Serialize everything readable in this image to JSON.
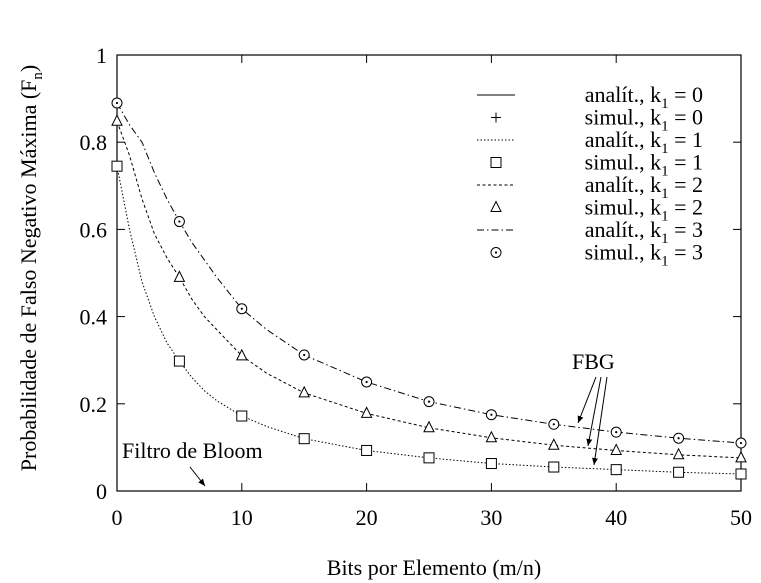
{
  "chart_data": {
    "type": "line",
    "xlabel": "Bits por Elemento (m/n)",
    "ylabel": "Probabilidade de Falso Negativo Máxima (F",
    "ylabel_sub": "n",
    "ylabel_tail": ")",
    "xlim": [
      0,
      50
    ],
    "ylim": [
      0,
      1
    ],
    "x_ticks": [
      "0",
      "10",
      "20",
      "30",
      "40",
      "50"
    ],
    "y_ticks": [
      "0",
      "0.2",
      "0.4",
      "0.6",
      "0.8",
      "1"
    ],
    "grid": false,
    "legend_position": "top-right",
    "annotations": {
      "bloom": "Filtro de Bloom",
      "fbg": "FBG"
    },
    "series": [
      {
        "kind": "analytic",
        "style": "solid",
        "label_pre": "analít., k",
        "label_sub": "1",
        "label_post": " = 0",
        "x": [
          0,
          50
        ],
        "y": [
          0,
          0
        ]
      },
      {
        "kind": "simulated",
        "marker": "plus",
        "label_pre": "simul., k",
        "label_sub": "1",
        "label_post": " = 0",
        "x": [],
        "y": []
      },
      {
        "kind": "analytic",
        "style": "dotted",
        "label_pre": "analít., k",
        "label_sub": "1",
        "label_post": " = 1",
        "x": [
          0,
          1,
          2,
          3,
          4,
          5,
          6,
          7,
          8,
          10,
          12,
          15,
          20,
          25,
          30,
          35,
          40,
          45,
          50
        ],
        "y": [
          0.745,
          0.6,
          0.48,
          0.4,
          0.34,
          0.298,
          0.26,
          0.23,
          0.207,
          0.172,
          0.148,
          0.12,
          0.093,
          0.076,
          0.063,
          0.055,
          0.049,
          0.043,
          0.039
        ]
      },
      {
        "kind": "simulated",
        "marker": "square",
        "label_pre": "simul., k",
        "label_sub": "1",
        "label_post": " = 1",
        "x": [
          0,
          5,
          10,
          15,
          20,
          25,
          30,
          35,
          40,
          45,
          50
        ],
        "y": [
          0.745,
          0.298,
          0.172,
          0.12,
          0.093,
          0.076,
          0.063,
          0.055,
          0.049,
          0.043,
          0.039
        ]
      },
      {
        "kind": "analytic",
        "style": "dashed",
        "label_pre": "analít., k",
        "label_sub": "1",
        "label_post": " = 2",
        "x": [
          0,
          1,
          2,
          3,
          4,
          5,
          6,
          7,
          8,
          10,
          12,
          15,
          20,
          25,
          30,
          35,
          40,
          45,
          50
        ],
        "y": [
          0.848,
          0.77,
          0.67,
          0.59,
          0.535,
          0.49,
          0.44,
          0.4,
          0.37,
          0.31,
          0.27,
          0.225,
          0.178,
          0.145,
          0.122,
          0.105,
          0.093,
          0.083,
          0.076
        ]
      },
      {
        "kind": "simulated",
        "marker": "triangle",
        "label_pre": "simul., k",
        "label_sub": "1",
        "label_post": " = 2",
        "x": [
          0,
          5,
          10,
          15,
          20,
          25,
          30,
          35,
          40,
          45,
          50
        ],
        "y": [
          0.848,
          0.49,
          0.31,
          0.225,
          0.178,
          0.145,
          0.122,
          0.105,
          0.093,
          0.083,
          0.076
        ]
      },
      {
        "kind": "analytic",
        "style": "dashdot",
        "label_pre": "analít., k",
        "label_sub": "1",
        "label_post": " = 3",
        "x": [
          0,
          1,
          2,
          3,
          4,
          5,
          6,
          7,
          8,
          10,
          12,
          15,
          20,
          25,
          30,
          35,
          40,
          45,
          50
        ],
        "y": [
          0.89,
          0.84,
          0.8,
          0.73,
          0.67,
          0.618,
          0.57,
          0.53,
          0.49,
          0.418,
          0.37,
          0.312,
          0.25,
          0.205,
          0.175,
          0.153,
          0.135,
          0.121,
          0.11
        ]
      },
      {
        "kind": "simulated",
        "marker": "circle",
        "label_pre": "simul., k",
        "label_sub": "1",
        "label_post": " = 3",
        "x": [
          0,
          5,
          10,
          15,
          20,
          25,
          30,
          35,
          40,
          45,
          50
        ],
        "y": [
          0.89,
          0.618,
          0.418,
          0.312,
          0.25,
          0.205,
          0.175,
          0.153,
          0.135,
          0.121,
          0.11
        ]
      }
    ]
  }
}
